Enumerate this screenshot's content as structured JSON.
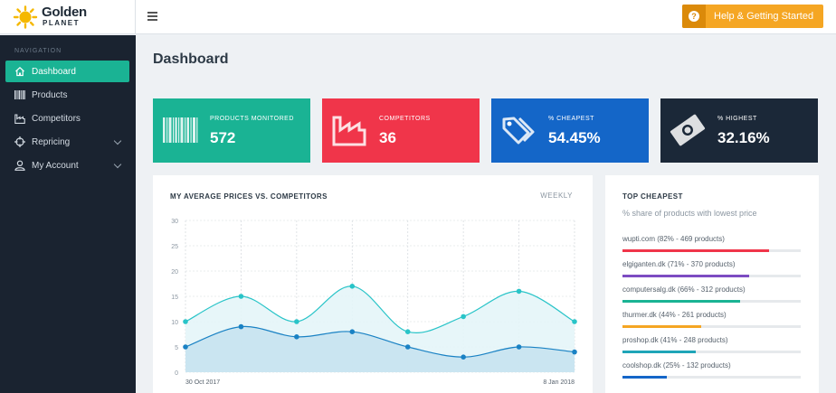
{
  "brand": {
    "line1": "Golden",
    "line2": "PLANET"
  },
  "header": {
    "help_label": "Help & Getting Started",
    "help_icon": "question-circle-icon",
    "help_color": "#f5a623"
  },
  "sidebar": {
    "heading": "NAVIGATION",
    "items": [
      {
        "label": "Dashboard",
        "icon": "home-icon",
        "active": true,
        "has_submenu": false
      },
      {
        "label": "Products",
        "icon": "barcode-icon",
        "active": false,
        "has_submenu": false
      },
      {
        "label": "Competitors",
        "icon": "factory-icon",
        "active": false,
        "has_submenu": false
      },
      {
        "label": "Repricing",
        "icon": "crosshair-icon",
        "active": false,
        "has_submenu": true
      },
      {
        "label": "My Account",
        "icon": "user-icon",
        "active": false,
        "has_submenu": true
      }
    ]
  },
  "page": {
    "title": "Dashboard"
  },
  "stats": [
    {
      "label": "PRODUCTS MONITORED",
      "value": "572",
      "icon": "barcode-icon",
      "color": "#1ab394"
    },
    {
      "label": "COMPETITORS",
      "value": "36",
      "icon": "factory-icon",
      "color": "#f0354a"
    },
    {
      "label": "% CHEAPEST",
      "value": "54.45%",
      "icon": "price-tag-icon",
      "color": "#1466c8"
    },
    {
      "label": "% HIGHEST",
      "value": "32.16%",
      "icon": "money-icon",
      "color": "#1b2838"
    }
  ],
  "chart_card": {
    "title": "MY AVERAGE PRICES VS. COMPETITORS",
    "period": "WEEKLY"
  },
  "chart_data": {
    "type": "area",
    "x_start_label": "30 Oct 2017",
    "x_end_label": "8 Jan 2018",
    "ylim": [
      0,
      30
    ],
    "yticks": [
      0,
      5,
      10,
      15,
      20,
      25,
      30
    ],
    "grid": true,
    "series": [
      {
        "values": [
          10,
          15,
          10,
          17,
          8,
          11,
          16,
          10
        ],
        "color": "#29c4c8"
      },
      {
        "values": [
          5,
          9,
          7,
          8,
          5,
          3,
          5,
          4
        ],
        "color": "#1a82c4"
      }
    ]
  },
  "top_cheapest": {
    "title": "TOP CHEAPEST",
    "subtitle": "% share of products with lowest price",
    "rows": [
      {
        "label": "wupti.com (82% - 469 products)",
        "percent": 82,
        "color": "#f0354a"
      },
      {
        "label": "elgiganten.dk (71% - 370 products)",
        "percent": 71,
        "color": "#7d4cc2"
      },
      {
        "label": "computersalg.dk (66% - 312 products)",
        "percent": 66,
        "color": "#1ab394"
      },
      {
        "label": "thurmer.dk (44% - 261 products)",
        "percent": 44,
        "color": "#f5a623"
      },
      {
        "label": "proshop.dk (41% - 248 products)",
        "percent": 41,
        "color": "#1fa5b8"
      },
      {
        "label": "coolshop.dk (25% - 132 products)",
        "percent": 25,
        "color": "#1466c8"
      }
    ]
  }
}
